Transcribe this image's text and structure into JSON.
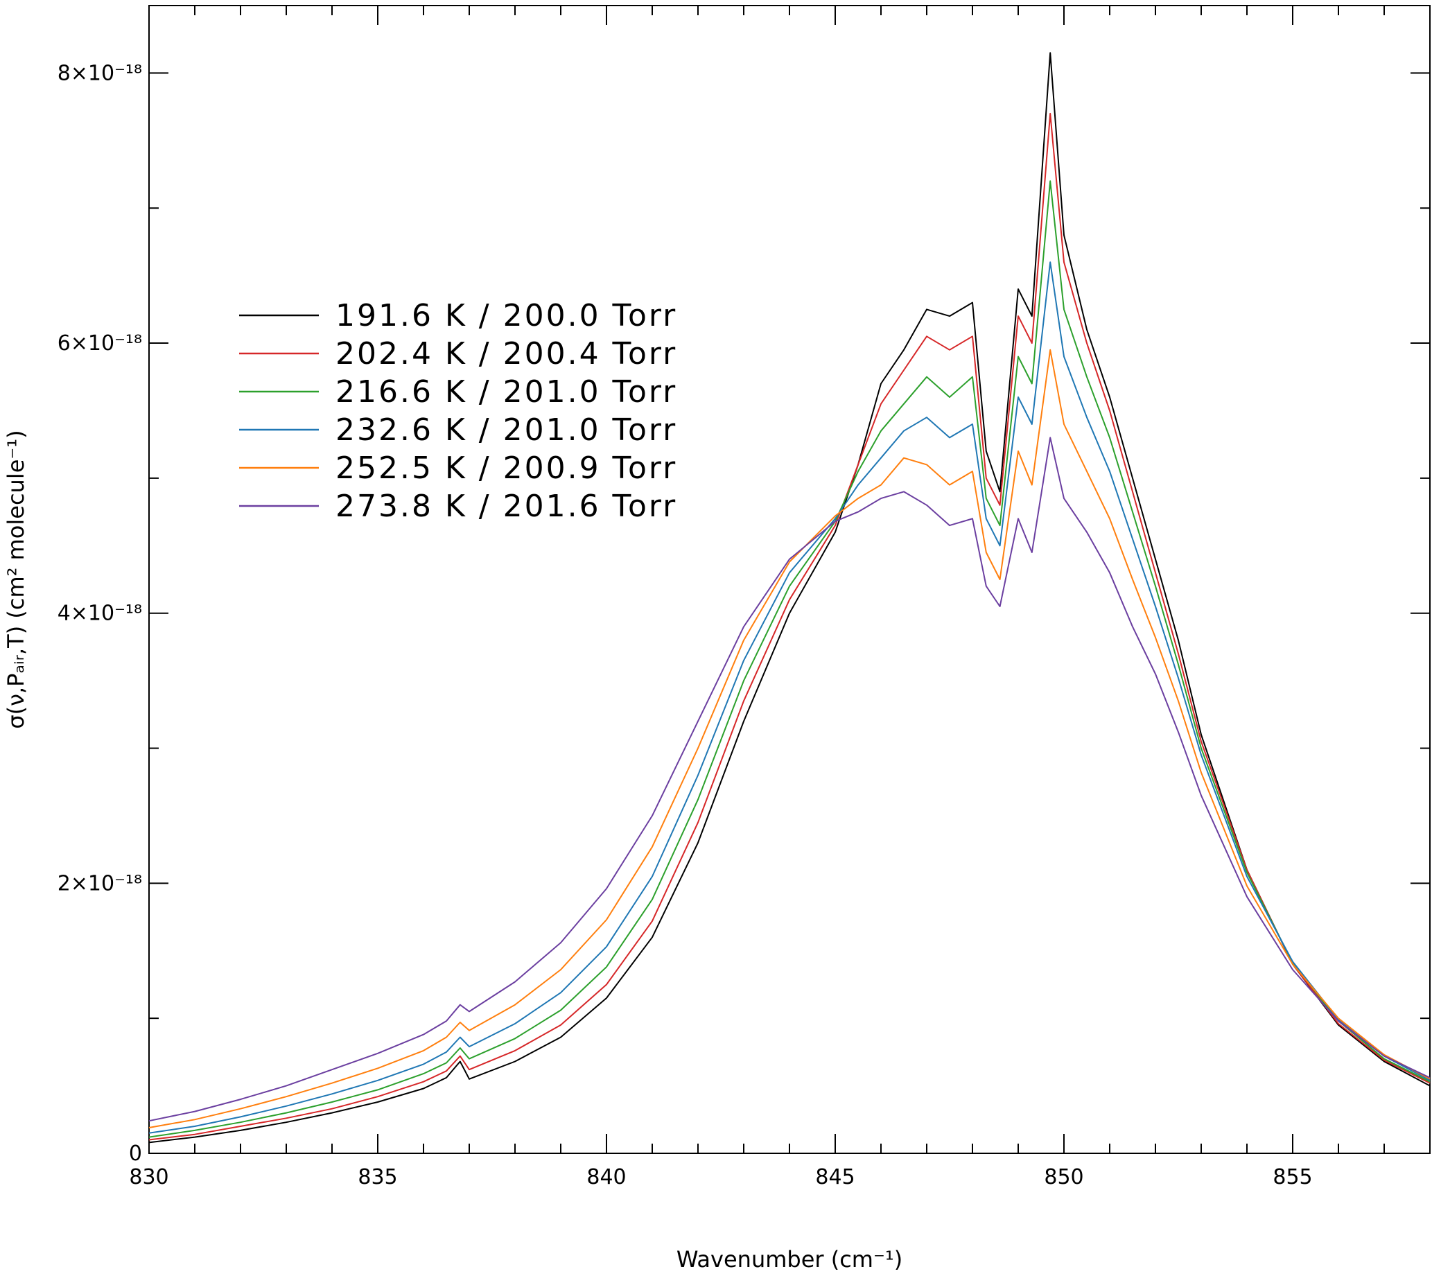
{
  "chart_data": {
    "type": "line",
    "xlabel": "Wavenumber (cm⁻¹)",
    "ylabel": "σ(ν,Pₐᵢᵣ,T) (cm² molecule⁻¹)",
    "xlim": [
      830,
      858
    ],
    "ylim": [
      0,
      8.5e-18
    ],
    "x_ticks": [
      830,
      835,
      840,
      845,
      850,
      855
    ],
    "x_tick_labels": [
      "830",
      "835",
      "840",
      "845",
      "850",
      "855"
    ],
    "y_ticks": [
      0,
      2e-18,
      4e-18,
      6e-18,
      8e-18
    ],
    "y_tick_labels": [
      "0",
      "2×10⁻¹⁸",
      "4×10⁻¹⁸",
      "6×10⁻¹⁸",
      "8×10⁻¹⁸"
    ],
    "legend_position": "upper-left",
    "grid": false,
    "x": [
      830,
      831,
      832,
      833,
      834,
      835,
      836,
      836.5,
      836.8,
      837,
      838,
      839,
      840,
      841,
      842,
      843,
      844,
      845,
      845.5,
      846,
      846.5,
      847,
      847.5,
      848,
      848.3,
      848.6,
      849,
      849.3,
      849.7,
      850,
      850.5,
      851,
      851.5,
      852,
      852.5,
      853,
      854,
      855,
      856,
      857,
      858
    ],
    "series": [
      {
        "name": "191.6 K / 200.0 Torr",
        "color": "#000000",
        "values": [
          8e-20,
          1.2e-19,
          1.7e-19,
          2.3e-19,
          3e-19,
          3.8e-19,
          4.8e-19,
          5.6e-19,
          6.8e-19,
          5.5e-19,
          6.8e-19,
          8.6e-19,
          1.15e-18,
          1.6e-18,
          2.3e-18,
          3.2e-18,
          4e-18,
          4.6e-18,
          5.1e-18,
          5.7e-18,
          5.95e-18,
          6.25e-18,
          6.2e-18,
          6.3e-18,
          5.2e-18,
          4.9e-18,
          6.4e-18,
          6.2e-18,
          8.15e-18,
          6.8e-18,
          6.1e-18,
          5.6e-18,
          5e-18,
          4.4e-18,
          3.8e-18,
          3.1e-18,
          2.1e-18,
          1.4e-18,
          9.5e-19,
          6.8e-19,
          5e-19
        ]
      },
      {
        "name": "202.4 K / 200.4 Torr",
        "color": "#d62728",
        "values": [
          1e-19,
          1.4e-19,
          2e-19,
          2.6e-19,
          3.3e-19,
          4.2e-19,
          5.3e-19,
          6.1e-19,
          7.2e-19,
          6.2e-19,
          7.6e-19,
          9.5e-19,
          1.25e-18,
          1.72e-18,
          2.45e-18,
          3.35e-18,
          4.1e-18,
          4.65e-18,
          5.1e-18,
          5.55e-18,
          5.8e-18,
          6.05e-18,
          5.95e-18,
          6.05e-18,
          5e-18,
          4.8e-18,
          6.2e-18,
          6e-18,
          7.7e-18,
          6.6e-18,
          6e-18,
          5.5e-18,
          4.9e-18,
          4.3e-18,
          3.7e-18,
          3.05e-18,
          2.1e-18,
          1.4e-18,
          9.6e-19,
          6.9e-19,
          5.2e-19
        ]
      },
      {
        "name": "216.6 K / 201.0 Torr",
        "color": "#2ca02c",
        "values": [
          1.2e-19,
          1.7e-19,
          2.3e-19,
          3e-19,
          3.8e-19,
          4.7e-19,
          5.9e-19,
          6.7e-19,
          7.8e-19,
          7e-19,
          8.5e-19,
          1.06e-18,
          1.38e-18,
          1.88e-18,
          2.62e-18,
          3.5e-18,
          4.2e-18,
          4.68e-18,
          5.05e-18,
          5.35e-18,
          5.55e-18,
          5.75e-18,
          5.6e-18,
          5.75e-18,
          4.85e-18,
          4.65e-18,
          5.9e-18,
          5.7e-18,
          7.2e-18,
          6.25e-18,
          5.75e-18,
          5.3e-18,
          4.75e-18,
          4.2e-18,
          3.62e-18,
          3e-18,
          2.08e-18,
          1.41e-18,
          9.8e-19,
          7e-19,
          5.3e-19
        ]
      },
      {
        "name": "232.6 K / 201.0 Torr",
        "color": "#1f77b4",
        "values": [
          1.5e-19,
          2e-19,
          2.7e-19,
          3.5e-19,
          4.4e-19,
          5.4e-19,
          6.6e-19,
          7.5e-19,
          8.6e-19,
          7.9e-19,
          9.6e-19,
          1.19e-18,
          1.53e-18,
          2.05e-18,
          2.8e-18,
          3.65e-18,
          4.3e-18,
          4.7e-18,
          4.95e-18,
          5.15e-18,
          5.35e-18,
          5.45e-18,
          5.3e-18,
          5.4e-18,
          4.7e-18,
          4.5e-18,
          5.6e-18,
          5.4e-18,
          6.6e-18,
          5.9e-18,
          5.45e-18,
          5.05e-18,
          4.55e-18,
          4.05e-18,
          3.52e-18,
          2.95e-18,
          2.05e-18,
          1.42e-18,
          9.9e-19,
          7.2e-19,
          5.4e-19
        ]
      },
      {
        "name": "252.5 K / 200.9 Torr",
        "color": "#ff7f0e",
        "values": [
          1.9e-19,
          2.5e-19,
          3.3e-19,
          4.2e-19,
          5.2e-19,
          6.3e-19,
          7.6e-19,
          8.6e-19,
          9.7e-19,
          9.1e-19,
          1.1e-18,
          1.36e-18,
          1.73e-18,
          2.27e-18,
          3e-18,
          3.8e-18,
          4.38e-18,
          4.72e-18,
          4.85e-18,
          4.95e-18,
          5.15e-18,
          5.1e-18,
          4.95e-18,
          5.05e-18,
          4.45e-18,
          4.25e-18,
          5.2e-18,
          4.95e-18,
          5.95e-18,
          5.4e-18,
          5.05e-18,
          4.7e-18,
          4.25e-18,
          3.82e-18,
          3.35e-18,
          2.82e-18,
          1.98e-18,
          1.4e-18,
          1e-18,
          7.3e-19,
          5.5e-19
        ]
      },
      {
        "name": "273.8 K / 201.6 Torr",
        "color": "#6b3fa0",
        "values": [
          2.4e-19,
          3.1e-19,
          4e-19,
          5e-19,
          6.2e-19,
          7.4e-19,
          8.8e-19,
          9.8e-19,
          1.1e-18,
          1.05e-18,
          1.27e-18,
          1.56e-18,
          1.96e-18,
          2.5e-18,
          3.2e-18,
          3.9e-18,
          4.4e-18,
          4.68e-18,
          4.75e-18,
          4.85e-18,
          4.9e-18,
          4.8e-18,
          4.65e-18,
          4.7e-18,
          4.2e-18,
          4.05e-18,
          4.7e-18,
          4.45e-18,
          5.3e-18,
          4.85e-18,
          4.6e-18,
          4.3e-18,
          3.9e-18,
          3.55e-18,
          3.12e-18,
          2.65e-18,
          1.9e-18,
          1.36e-18,
          9.8e-19,
          7.2e-19,
          5.6e-19
        ]
      }
    ]
  }
}
